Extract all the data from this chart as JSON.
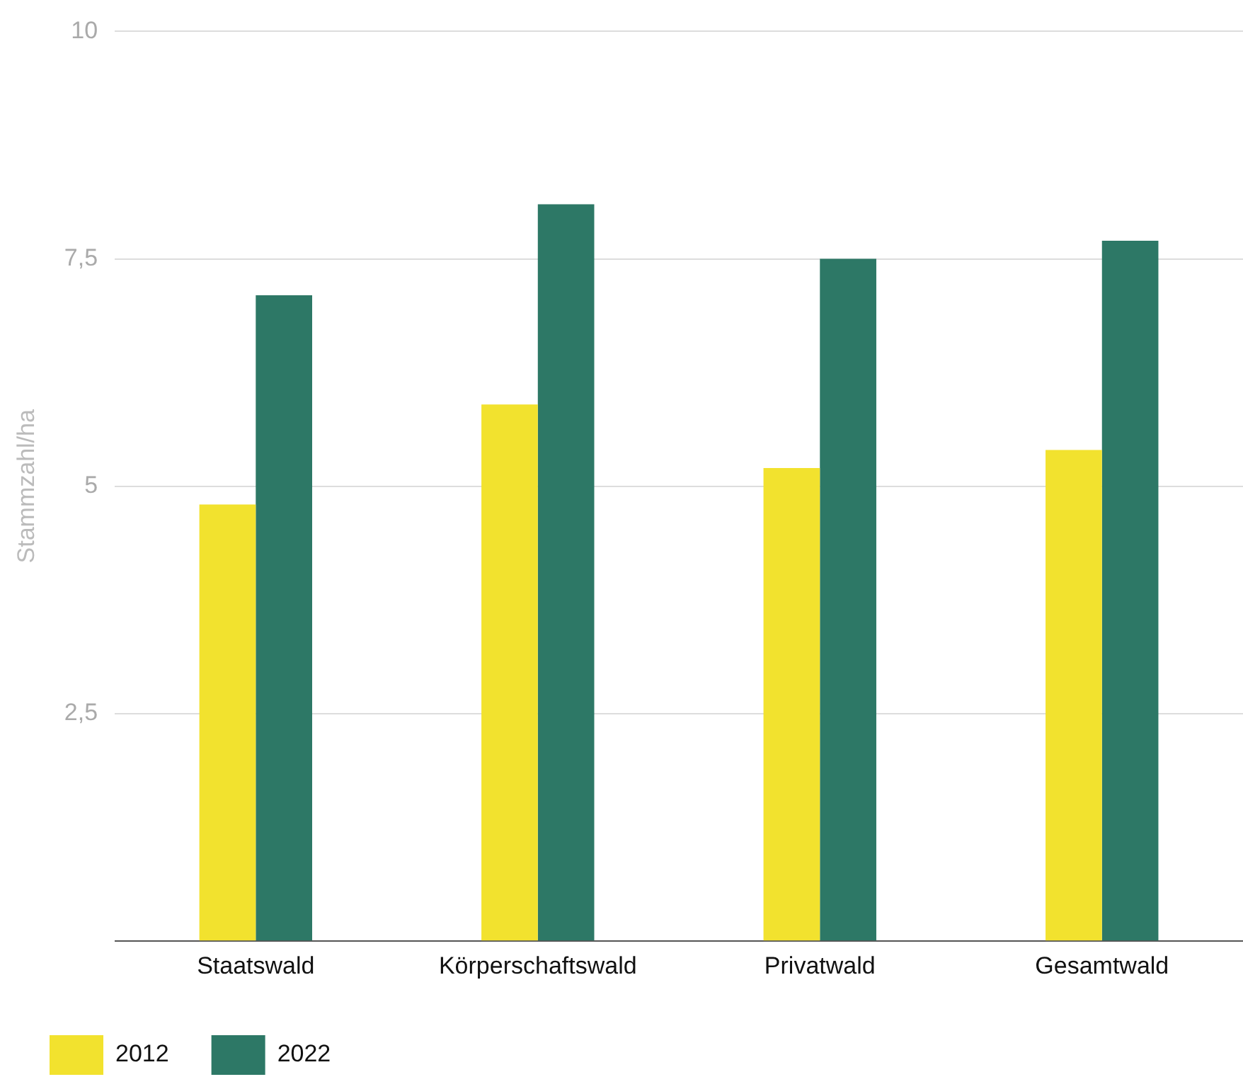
{
  "chart_data": {
    "type": "bar",
    "ylabel": "Stammzahl/ha",
    "categories": [
      "Staatswald",
      "Körperschaftswald",
      "Privatwald",
      "Gesamtwald"
    ],
    "series": [
      {
        "name": "2012",
        "color": "#f2e22e",
        "values": [
          4.8,
          5.9,
          5.2,
          5.4
        ]
      },
      {
        "name": "2022",
        "color": "#2d7866",
        "values": [
          7.1,
          8.1,
          7.5,
          7.7
        ]
      }
    ],
    "ylim": [
      0,
      10
    ],
    "yticks": [
      {
        "value": 0,
        "label": null
      },
      {
        "value": 2.5,
        "label": "2,5"
      },
      5,
      {
        "value": 7.5,
        "label": "7,5"
      },
      10
    ],
    "grid": "y",
    "legend": "bottom left"
  }
}
